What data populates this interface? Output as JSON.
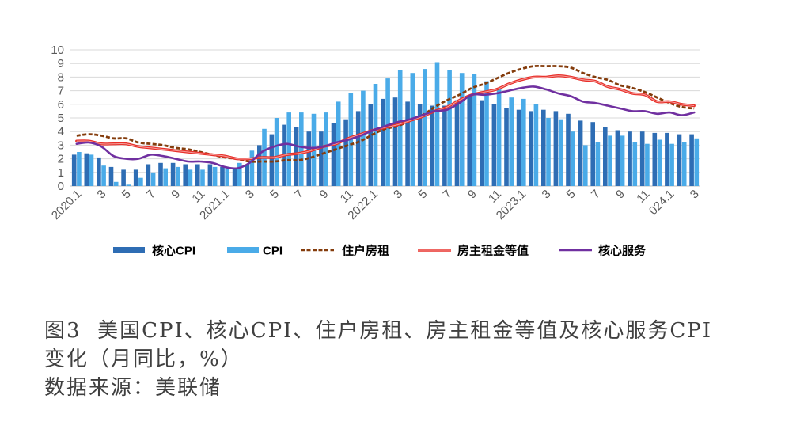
{
  "chart_data": {
    "type": "bar",
    "categories": [
      "2020.1",
      "",
      "3",
      "",
      "5",
      "",
      "7",
      "",
      "9",
      "",
      "11",
      "",
      "2021.1",
      "",
      "3",
      "",
      "5",
      "",
      "7",
      "",
      "9",
      "",
      "11",
      "",
      "2022.1",
      "",
      "3",
      "",
      "5",
      "",
      "7",
      "",
      "9",
      "",
      "11",
      "",
      "2023.1",
      "",
      "3",
      "",
      "5",
      "",
      "7",
      "",
      "9",
      "",
      "11",
      "",
      "024.1",
      "",
      "3"
    ],
    "ylim": [
      0,
      10
    ],
    "yticks": [
      0,
      1,
      2,
      3,
      4,
      5,
      6,
      7,
      8,
      9,
      10
    ],
    "grid": "horizontal",
    "legend_position": "bottom",
    "series": [
      {
        "name": "核心CPI",
        "type": "bar",
        "color": "#2E6DB4",
        "values": [
          2.3,
          2.4,
          2.1,
          1.4,
          1.2,
          1.2,
          1.6,
          1.7,
          1.7,
          1.6,
          1.6,
          1.6,
          1.4,
          1.3,
          1.6,
          3.0,
          3.8,
          4.5,
          4.3,
          4.0,
          4.0,
          4.6,
          4.9,
          5.5,
          6.0,
          6.4,
          6.5,
          6.2,
          6.0,
          5.9,
          5.9,
          6.3,
          6.6,
          6.3,
          6.0,
          5.7,
          5.6,
          5.5,
          5.6,
          5.5,
          5.3,
          4.8,
          4.7,
          4.3,
          4.1,
          4.0,
          4.0,
          3.9,
          3.9,
          3.8,
          3.8
        ]
      },
      {
        "name": "CPI",
        "type": "bar",
        "color": "#4AABE8",
        "values": [
          2.5,
          2.3,
          1.5,
          0.3,
          0.1,
          0.6,
          1.0,
          1.3,
          1.4,
          1.2,
          1.2,
          1.4,
          1.4,
          1.7,
          2.6,
          4.2,
          5.0,
          5.4,
          5.4,
          5.3,
          5.4,
          6.2,
          6.8,
          7.0,
          7.5,
          7.9,
          8.5,
          8.3,
          8.6,
          9.1,
          8.5,
          8.3,
          8.2,
          7.7,
          7.1,
          6.5,
          6.4,
          6.0,
          5.0,
          4.9,
          4.0,
          3.0,
          3.2,
          3.7,
          3.7,
          3.2,
          3.1,
          3.4,
          3.1,
          3.2,
          3.5
        ]
      },
      {
        "name": "住户房租",
        "type": "line",
        "line_style": "dashed",
        "color": "#843C0C",
        "values": [
          3.7,
          3.8,
          3.7,
          3.5,
          3.5,
          3.2,
          3.1,
          3.0,
          2.8,
          2.7,
          2.5,
          2.3,
          2.1,
          2.0,
          1.8,
          1.8,
          1.8,
          1.9,
          1.9,
          2.1,
          2.4,
          2.7,
          3.0,
          3.3,
          3.8,
          4.2,
          4.4,
          4.8,
          5.2,
          5.8,
          6.3,
          6.7,
          7.2,
          7.5,
          7.9,
          8.3,
          8.6,
          8.8,
          8.8,
          8.8,
          8.7,
          8.3,
          8.0,
          7.8,
          7.4,
          7.2,
          6.9,
          6.5,
          6.1,
          5.8,
          5.7
        ]
      },
      {
        "name": "房主租金等值",
        "type": "line",
        "line_style": "double",
        "color": "#E8302A",
        "values": [
          3.3,
          3.3,
          3.1,
          3.1,
          3.1,
          2.9,
          2.8,
          2.7,
          2.6,
          2.5,
          2.4,
          2.3,
          2.2,
          2.0,
          2.0,
          2.1,
          2.1,
          2.3,
          2.4,
          2.6,
          2.9,
          3.1,
          3.5,
          3.8,
          4.1,
          4.3,
          4.5,
          4.8,
          5.1,
          5.5,
          5.8,
          6.3,
          6.7,
          6.9,
          7.1,
          7.5,
          7.8,
          8.0,
          8.0,
          8.1,
          8.0,
          7.8,
          7.7,
          7.3,
          7.1,
          6.8,
          6.7,
          6.2,
          6.2,
          6.0,
          5.9
        ]
      },
      {
        "name": "核心服务",
        "type": "line",
        "line_style": "solid",
        "color": "#7030A0",
        "values": [
          3.1,
          3.2,
          2.9,
          2.2,
          2.0,
          2.0,
          2.3,
          2.2,
          2.0,
          1.8,
          1.8,
          1.7,
          1.4,
          1.3,
          1.7,
          2.5,
          2.9,
          3.1,
          2.9,
          2.8,
          2.9,
          3.2,
          3.4,
          3.7,
          4.1,
          4.4,
          4.7,
          4.9,
          5.2,
          5.5,
          5.6,
          6.1,
          6.7,
          6.7,
          6.8,
          7.0,
          7.2,
          7.3,
          7.1,
          6.8,
          6.6,
          6.2,
          6.1,
          5.9,
          5.7,
          5.5,
          5.5,
          5.3,
          5.4,
          5.2,
          5.4
        ]
      }
    ]
  },
  "caption": {
    "lines": [
      "图3  美国CPI、核心CPI、住户房租、房主租金等值及核心服务CPI",
      "变化（月同比，%）"
    ],
    "source": "数据来源：美联储"
  }
}
